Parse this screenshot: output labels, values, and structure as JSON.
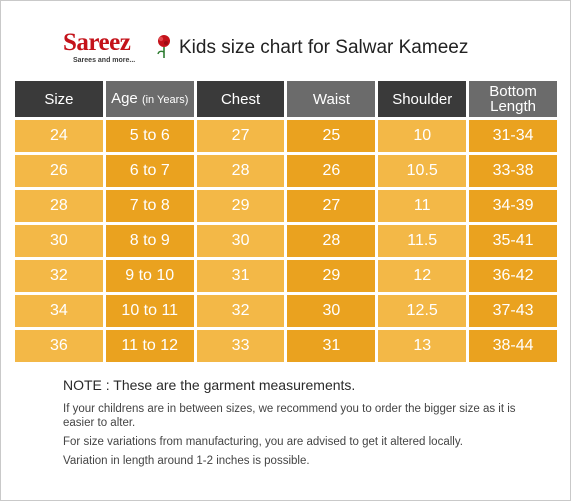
{
  "brand": {
    "name": "Sareez",
    "tagline": "Sarees and more..."
  },
  "title": "Kids size chart for Salwar Kameez",
  "colors": {
    "header_dark": "#3a3a3a",
    "header_light": "#6b6b6b",
    "cell_light": "#f3b847",
    "cell_dark": "#eaa21f",
    "brand_red": "#c4121a"
  },
  "table": {
    "headers": [
      {
        "label": "Size"
      },
      {
        "label": "Age",
        "sub": "(in Years)"
      },
      {
        "label": "Chest"
      },
      {
        "label": "Waist"
      },
      {
        "label": "Shoulder"
      },
      {
        "label": "Bottom",
        "label2": "Length"
      }
    ],
    "rows": [
      [
        "24",
        "5 to 6",
        "27",
        "25",
        "10",
        "31-34"
      ],
      [
        "26",
        "6 to 7",
        "28",
        "26",
        "10.5",
        "33-38"
      ],
      [
        "28",
        "7 to 8",
        "29",
        "27",
        "11",
        "34-39"
      ],
      [
        "30",
        "8 to 9",
        "30",
        "28",
        "11.5",
        "35-41"
      ],
      [
        "32",
        "9 to 10",
        "31",
        "29",
        "12",
        "36-42"
      ],
      [
        "34",
        "10 to 11",
        "32",
        "30",
        "12.5",
        "37-43"
      ],
      [
        "36",
        "11 to 12",
        "33",
        "31",
        "13",
        "38-44"
      ]
    ]
  },
  "notes": {
    "title": "NOTE : These are the garment measurements.",
    "lines": [
      "If your childrens are in between sizes, we recommend you to order the bigger size as it is easier to alter.",
      "For size variations from manufacturing, you are advised to get it altered locally.",
      "Variation in length around 1-2 inches is possible."
    ]
  }
}
